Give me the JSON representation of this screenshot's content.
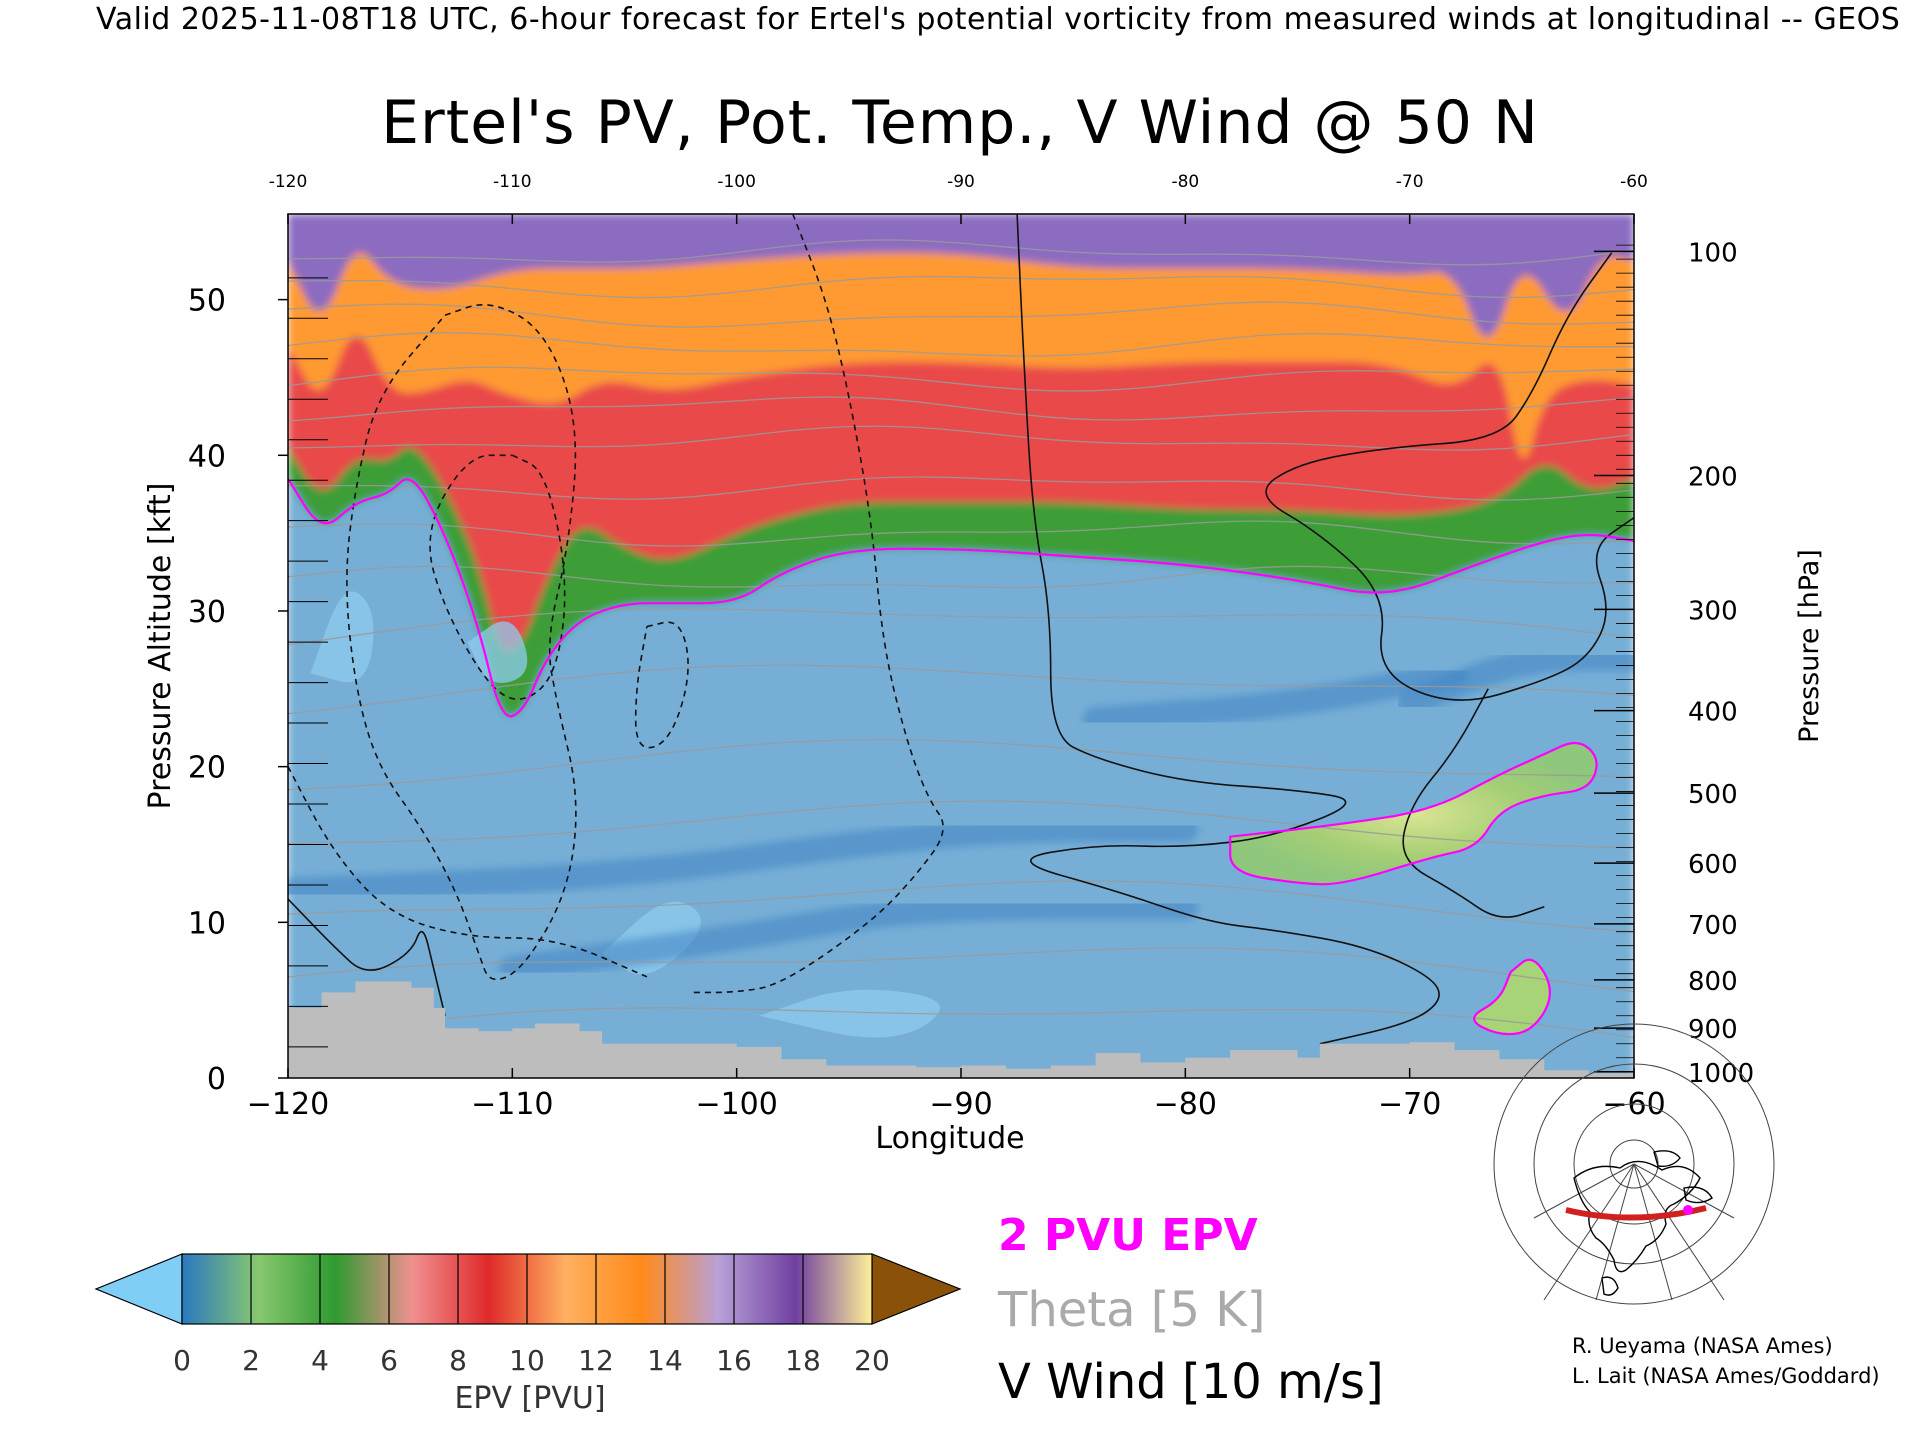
{
  "header": "Valid 2025-11-08T18 UTC, 6-hour forecast for Ertel's potential vorticity from measured winds at longitudinal -- GEOS",
  "chart_data": {
    "type": "heatmap",
    "title": "Ertel's PV, Pot. Temp., V Wind @ 50 N",
    "xlabel": "Longitude",
    "ylabel_left": "Pressure Altitude [kft]",
    "ylabel_right": "Pressure [hPa]",
    "xlim": [
      -120,
      -60
    ],
    "ylim": [
      0,
      55.5
    ],
    "x_ticks": [
      -120,
      -110,
      -100,
      -90,
      -80,
      -70,
      -60
    ],
    "y_ticks_kft": [
      0,
      10,
      20,
      30,
      40,
      50
    ],
    "right_axis_ticks": [
      {
        "label": "100",
        "kft": 53.1
      },
      {
        "label": "200",
        "kft": 38.7
      },
      {
        "label": "300",
        "kft": 30.1
      },
      {
        "label": "400",
        "kft": 23.6
      },
      {
        "label": "500",
        "kft": 18.3
      },
      {
        "label": "600",
        "kft": 13.8
      },
      {
        "label": "700",
        "kft": 9.9
      },
      {
        "label": "800",
        "kft": 6.3
      },
      {
        "label": "900",
        "kft": 3.2
      },
      {
        "label": "1000",
        "kft": 0.4
      }
    ],
    "colorbar": {
      "label": "EPV [PVU]",
      "ticks": [
        0,
        2,
        4,
        6,
        8,
        10,
        12,
        14,
        16,
        18,
        20
      ],
      "colors": [
        "#80cdf5",
        "#2a78c0",
        "#88c870",
        "#2f9a2f",
        "#f09090",
        "#e02a2a",
        "#ffb060",
        "#ff8a1a",
        "#b8a0d8",
        "#7040a0",
        "#fff098",
        "#8a5208"
      ]
    },
    "pv_layers": [
      {
        "name": "troposphere",
        "color": "#76aed6",
        "top": [
          [
            -120,
            38.5
          ],
          [
            -118.5,
            35
          ],
          [
            -117,
            37
          ],
          [
            -115.5,
            37.5
          ],
          [
            -114.5,
            39
          ],
          [
            -113,
            35
          ],
          [
            -111.5,
            29
          ],
          [
            -110.5,
            23
          ],
          [
            -109.5,
            23.5
          ],
          [
            -108.5,
            27
          ],
          [
            -107,
            29.5
          ],
          [
            -105,
            30.5
          ],
          [
            -103,
            30.5
          ],
          [
            -100,
            30.5
          ],
          [
            -98,
            32.5
          ],
          [
            -95,
            34
          ],
          [
            -90,
            34
          ],
          [
            -85,
            33.5
          ],
          [
            -80,
            33
          ],
          [
            -75,
            32
          ],
          [
            -71,
            30.8
          ],
          [
            -67,
            33
          ],
          [
            -64,
            34.5
          ],
          [
            -62,
            35
          ],
          [
            -60,
            34.5
          ]
        ]
      },
      {
        "name": "green",
        "color": "#3e9e37",
        "top": [
          [
            -120,
            40.5
          ],
          [
            -118.5,
            37
          ],
          [
            -117,
            40
          ],
          [
            -115.5,
            39.5
          ],
          [
            -114.5,
            41
          ],
          [
            -113,
            38
          ],
          [
            -111.5,
            33
          ],
          [
            -110.5,
            27
          ],
          [
            -109.5,
            28
          ],
          [
            -108.5,
            32
          ],
          [
            -107,
            36
          ],
          [
            -105,
            34
          ],
          [
            -103,
            33
          ],
          [
            -100,
            35
          ],
          [
            -98,
            36
          ],
          [
            -95,
            37
          ],
          [
            -90,
            37
          ],
          [
            -85,
            37
          ],
          [
            -80,
            36.5
          ],
          [
            -75,
            36.5
          ],
          [
            -70,
            36
          ],
          [
            -66,
            37
          ],
          [
            -64,
            40
          ],
          [
            -62,
            37.5
          ],
          [
            -60,
            38.5
          ]
        ]
      },
      {
        "name": "red",
        "color": "#e94848",
        "top": [
          [
            -120,
            47
          ],
          [
            -118.5,
            43
          ],
          [
            -117,
            49
          ],
          [
            -115.5,
            44
          ],
          [
            -114,
            44
          ],
          [
            -112,
            45
          ],
          [
            -110.5,
            44
          ],
          [
            -108,
            43
          ],
          [
            -106,
            45
          ],
          [
            -103,
            44
          ],
          [
            -100,
            45
          ],
          [
            -95,
            46
          ],
          [
            -90,
            46
          ],
          [
            -85,
            45.5
          ],
          [
            -80,
            46
          ],
          [
            -75,
            46
          ],
          [
            -71,
            46
          ],
          [
            -68,
            44
          ],
          [
            -66,
            47
          ],
          [
            -65,
            38
          ],
          [
            -64,
            44
          ],
          [
            -62,
            45
          ],
          [
            -60,
            44.5
          ]
        ]
      },
      {
        "name": "orange",
        "color": "#ff9a30",
        "top": [
          [
            -120,
            52.5
          ],
          [
            -118.5,
            48
          ],
          [
            -117,
            54
          ],
          [
            -115.5,
            51
          ],
          [
            -113,
            50.5
          ],
          [
            -110,
            52
          ],
          [
            -107,
            52
          ],
          [
            -104,
            52
          ],
          [
            -100,
            52.5
          ],
          [
            -95,
            53
          ],
          [
            -90,
            53
          ],
          [
            -85,
            52
          ],
          [
            -80,
            52
          ],
          [
            -75,
            52
          ],
          [
            -70,
            51.5
          ],
          [
            -68,
            52
          ],
          [
            -66.5,
            46
          ],
          [
            -65,
            53
          ],
          [
            -63,
            48
          ],
          [
            -61.5,
            53
          ],
          [
            -60,
            52.5
          ]
        ]
      },
      {
        "name": "purple",
        "color": "#8c6cc0",
        "top": [
          [
            -120,
            55.5
          ],
          [
            -60,
            55.5
          ]
        ]
      },
      {
        "name": "yellow",
        "color": "#f5ea8c",
        "top": [
          [
            -120,
            55.5
          ],
          [
            -60,
            55.5
          ]
        ]
      }
    ],
    "pv_2pvu_polygons": [
      [
        [
          -78,
          15.5
        ],
        [
          -73,
          16.3
        ],
        [
          -69,
          17.2
        ],
        [
          -66,
          19.5
        ],
        [
          -64,
          20.8
        ],
        [
          -62.5,
          21.8
        ],
        [
          -61.5,
          20.5
        ],
        [
          -62,
          18.5
        ],
        [
          -64,
          18.2
        ],
        [
          -66,
          17.2
        ],
        [
          -67,
          14.8
        ],
        [
          -69,
          14.2
        ],
        [
          -73,
          12.4
        ],
        [
          -75,
          12.5
        ],
        [
          -78,
          13.2
        ]
      ],
      [
        [
          -65.5,
          6.8
        ],
        [
          -64.5,
          8
        ],
        [
          -63.5,
          5.5
        ],
        [
          -64.5,
          3
        ],
        [
          -66,
          2.7
        ],
        [
          -67.5,
          3.8
        ],
        [
          -66,
          5
        ]
      ]
    ],
    "theta_contours_K": [
      290,
      300,
      310,
      320,
      330,
      340,
      350,
      360,
      370,
      380,
      390,
      400,
      420
    ],
    "v_wind_contours_ms": [
      -30,
      -10,
      0,
      10
    ],
    "terrain_kft": [
      [
        -120,
        4.5
      ],
      [
        -118.5,
        5.5
      ],
      [
        -117,
        6.2
      ],
      [
        -115.5,
        6.2
      ],
      [
        -114.5,
        5.8
      ],
      [
        -113.5,
        4.5
      ],
      [
        -113,
        3.2
      ],
      [
        -111.5,
        3
      ],
      [
        -110,
        3.2
      ],
      [
        -109,
        3.5
      ],
      [
        -107,
        3
      ],
      [
        -106,
        2.2
      ],
      [
        -104,
        2.2
      ],
      [
        -102,
        2.2
      ],
      [
        -100,
        2
      ],
      [
        -98,
        1.2
      ],
      [
        -96,
        0.8
      ],
      [
        -92,
        0.7
      ],
      [
        -90,
        0.8
      ],
      [
        -88,
        0.6
      ],
      [
        -86,
        0.8
      ],
      [
        -84,
        1.6
      ],
      [
        -82,
        1
      ],
      [
        -80,
        1.3
      ],
      [
        -78,
        1.8
      ],
      [
        -75,
        1.3
      ],
      [
        -74,
        2.2
      ],
      [
        -70,
        2.3
      ],
      [
        -68,
        1.8
      ],
      [
        -66,
        1.2
      ],
      [
        -64,
        0.5
      ],
      [
        -62,
        0.3
      ],
      [
        -60,
        0.3
      ]
    ]
  },
  "legend": {
    "epv": "2 PVU EPV",
    "theta": "Theta [5 K]",
    "vwind": "V Wind [10 m/s]",
    "epv_color": "#ff00ff",
    "theta_color": "#aaaaaa"
  },
  "inset_map": {
    "icon": "polar-map-icon",
    "section_color": "#cc2020"
  },
  "credits": [
    "R. Ueyama (NASA Ames)",
    "L. Lait (NASA Ames/Goddard)"
  ]
}
